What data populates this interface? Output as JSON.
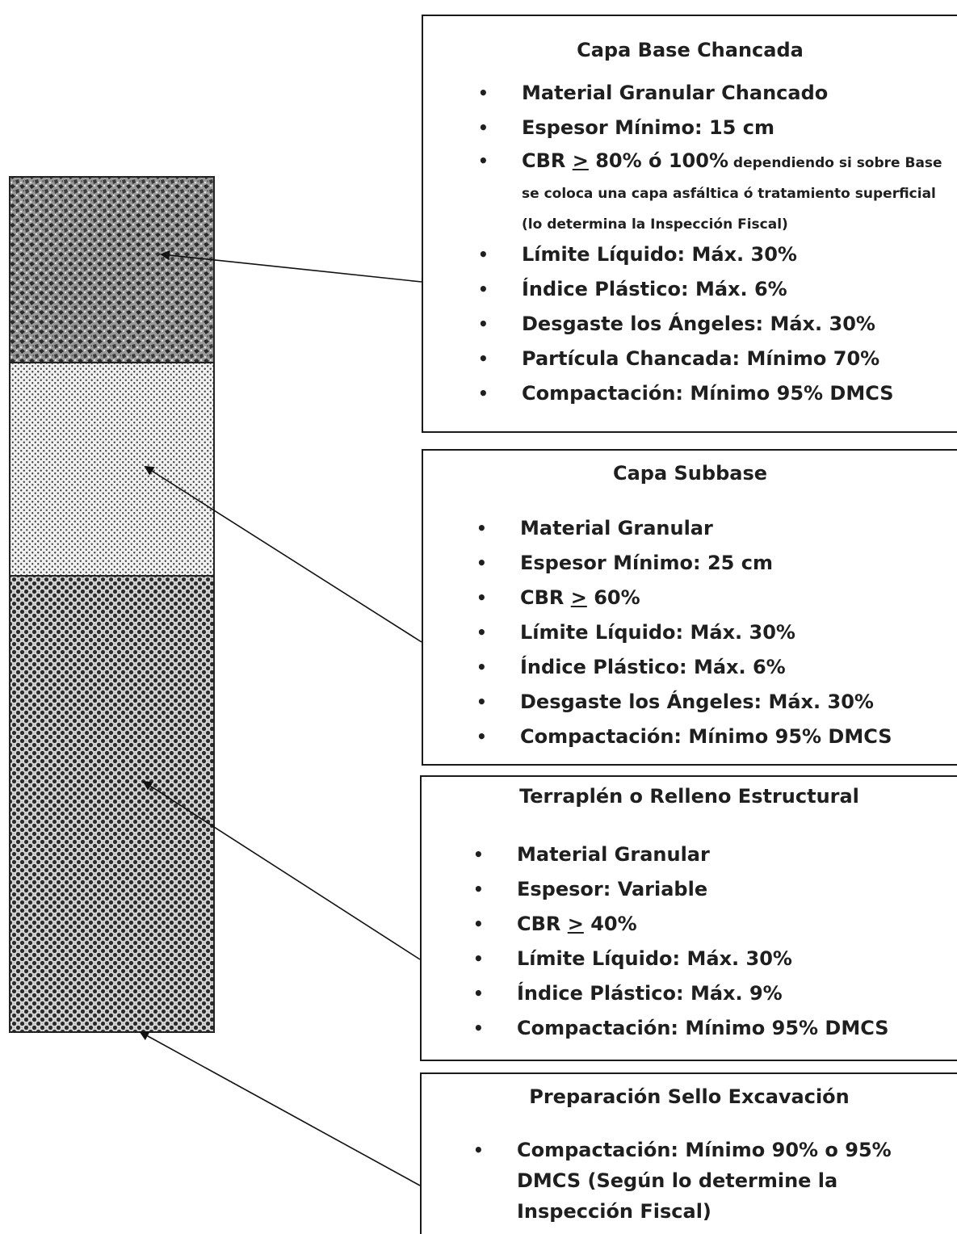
{
  "layers": [
    {
      "title": "Capa Base Chancada",
      "items": [
        {
          "text": "Material Granular Chancado"
        },
        {
          "text": "Espesor Mínimo: 15 cm"
        },
        {
          "prefix": "CBR ",
          "ge": ">",
          "value": " 80% ó 100%",
          "detail": " dependiendo si sobre Base se coloca una capa asfáltica ó  tratamiento superficial (lo determina la Inspección Fiscal)"
        },
        {
          "text": "Límite Líquido: Máx. 30%"
        },
        {
          "text": "Índice Plástico: Máx. 6%"
        },
        {
          "text": "Desgaste los Ángeles: Máx. 30%"
        },
        {
          "text": "Partícula Chancada: Mínimo 70%"
        },
        {
          "text": "Compactación: Mínimo 95% DMCS"
        }
      ]
    },
    {
      "title": "Capa Subbase",
      "items": [
        {
          "text": "Material Granular"
        },
        {
          "text": "Espesor Mínimo: 25 cm"
        },
        {
          "prefix": "CBR ",
          "ge": ">",
          "value": " 60%"
        },
        {
          "text": "Límite Líquido: Máx. 30%"
        },
        {
          "text": "Índice Plástico: Máx. 6%"
        },
        {
          "text": "Desgaste los Ángeles: Máx. 30%"
        },
        {
          "text": "Compactación: Mínimo 95% DMCS"
        }
      ]
    },
    {
      "title": "Terraplén o Relleno Estructural",
      "items": [
        {
          "text": "Material Granular"
        },
        {
          "text": "Espesor: Variable"
        },
        {
          "prefix": "CBR ",
          "ge": ">",
          "value": " 40%"
        },
        {
          "text": "Límite Líquido: Máx. 30%"
        },
        {
          "text": "Índice Plástico: Máx. 9%"
        },
        {
          "text": "Compactación: Mínimo 95% DMCS"
        }
      ]
    },
    {
      "title": "Preparación Sello Excavación",
      "items": [
        {
          "text": "Compactación: Mínimo 90% o 95% DMCS (Según lo determine la Inspección Fiscal)"
        }
      ]
    }
  ],
  "bullet": "•"
}
